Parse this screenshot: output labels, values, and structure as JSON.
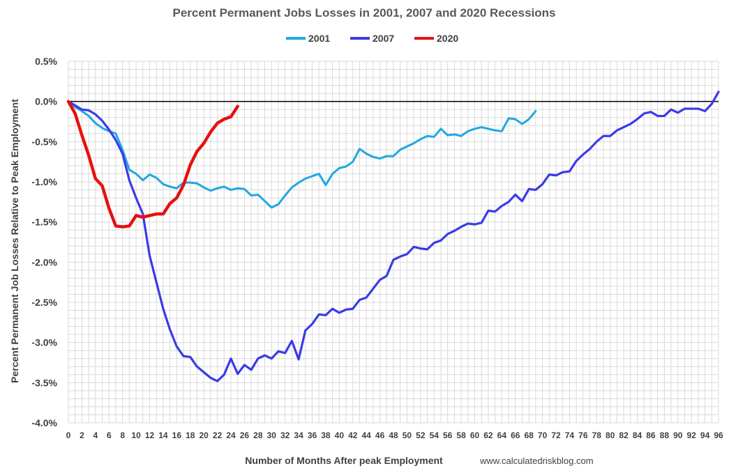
{
  "chart_data": {
    "type": "line",
    "title": "Percent Permanent Jobs Losses in 2001, 2007 and 2020 Recessions",
    "xlabel": "Number of Months After peak Employment",
    "ylabel": "Percent Permanent Job Losses Relative to Peak Employment",
    "source": "www.calculatedriskblog.com",
    "xlim": [
      0,
      96
    ],
    "ylim": [
      -4.0,
      0.5
    ],
    "x_ticks": [
      0,
      2,
      4,
      6,
      8,
      10,
      12,
      14,
      16,
      18,
      20,
      22,
      24,
      26,
      28,
      30,
      32,
      34,
      36,
      38,
      40,
      42,
      44,
      46,
      48,
      50,
      52,
      54,
      56,
      58,
      60,
      62,
      64,
      66,
      68,
      70,
      72,
      74,
      76,
      78,
      80,
      82,
      84,
      86,
      88,
      90,
      92,
      94,
      96
    ],
    "y_ticks": [
      "0.5%",
      "0.0%",
      "-0.5%",
      "-1.0%",
      "-1.5%",
      "-2.0%",
      "-2.5%",
      "-3.0%",
      "-3.5%",
      "-4.0%"
    ],
    "y_tick_values": [
      0.5,
      0.0,
      -0.5,
      -1.0,
      -1.5,
      -2.0,
      -2.5,
      -3.0,
      -3.5,
      -4.0
    ],
    "grid": true,
    "legend_position": "top-center",
    "series": [
      {
        "name": "2001",
        "color": "#1fa8e0",
        "values": [
          0,
          -0.07,
          -0.12,
          -0.18,
          -0.27,
          -0.33,
          -0.37,
          -0.4,
          -0.6,
          -0.85,
          -0.9,
          -0.98,
          -0.91,
          -0.95,
          -1.03,
          -1.06,
          -1.08,
          -1.01,
          -1.01,
          -1.02,
          -1.07,
          -1.11,
          -1.08,
          -1.06,
          -1.1,
          -1.08,
          -1.09,
          -1.17,
          -1.16,
          -1.24,
          -1.32,
          -1.28,
          -1.17,
          -1.07,
          -1.01,
          -0.96,
          -0.93,
          -0.9,
          -1.04,
          -0.9,
          -0.83,
          -0.81,
          -0.75,
          -0.59,
          -0.65,
          -0.69,
          -0.71,
          -0.68,
          -0.68,
          -0.6,
          -0.56,
          -0.52,
          -0.47,
          -0.43,
          -0.44,
          -0.34,
          -0.42,
          -0.41,
          -0.43,
          -0.37,
          -0.34,
          -0.32,
          -0.34,
          -0.36,
          -0.37,
          -0.21,
          -0.22,
          -0.28,
          -0.22,
          -0.12
        ]
      },
      {
        "name": "2007",
        "color": "#3a3ae8",
        "values": [
          0,
          -0.05,
          -0.1,
          -0.11,
          -0.16,
          -0.24,
          -0.35,
          -0.48,
          -0.65,
          -0.98,
          -1.2,
          -1.4,
          -1.92,
          -2.25,
          -2.58,
          -2.84,
          -3.05,
          -3.17,
          -3.18,
          -3.3,
          -3.37,
          -3.44,
          -3.48,
          -3.4,
          -3.2,
          -3.39,
          -3.28,
          -3.34,
          -3.2,
          -3.16,
          -3.2,
          -3.11,
          -3.13,
          -2.98,
          -3.21,
          -2.85,
          -2.77,
          -2.65,
          -2.66,
          -2.58,
          -2.63,
          -2.59,
          -2.58,
          -2.47,
          -2.44,
          -2.33,
          -2.22,
          -2.17,
          -1.97,
          -1.93,
          -1.9,
          -1.81,
          -1.83,
          -1.84,
          -1.76,
          -1.73,
          -1.65,
          -1.61,
          -1.56,
          -1.52,
          -1.53,
          -1.51,
          -1.36,
          -1.37,
          -1.3,
          -1.25,
          -1.16,
          -1.24,
          -1.09,
          -1.1,
          -1.03,
          -0.91,
          -0.92,
          -0.88,
          -0.87,
          -0.74,
          -0.66,
          -0.59,
          -0.5,
          -0.43,
          -0.43,
          -0.36,
          -0.32,
          -0.28,
          -0.22,
          -0.15,
          -0.13,
          -0.18,
          -0.18,
          -0.1,
          -0.14,
          -0.09,
          -0.09,
          -0.09,
          -0.12,
          -0.03,
          0.12
        ]
      },
      {
        "name": "2020",
        "color": "#e81010",
        "values": [
          0,
          -0.15,
          -0.42,
          -0.67,
          -0.96,
          -1.05,
          -1.33,
          -1.55,
          -1.56,
          -1.55,
          -1.42,
          -1.44,
          -1.42,
          -1.4,
          -1.4,
          -1.27,
          -1.2,
          -1.04,
          -0.79,
          -0.62,
          -0.52,
          -0.38,
          -0.27,
          -0.22,
          -0.19,
          -0.06
        ]
      }
    ]
  }
}
